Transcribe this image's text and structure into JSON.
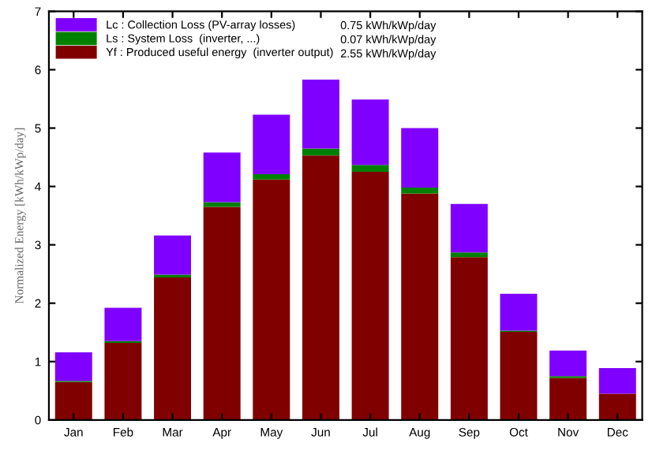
{
  "chart_data": {
    "type": "bar",
    "stacked": true,
    "ylabel": "Normalized Energy [kWh/kWp/day]",
    "categories": [
      "Jan",
      "Feb",
      "Mar",
      "Apr",
      "May",
      "Jun",
      "Jul",
      "Aug",
      "Sep",
      "Oct",
      "Nov",
      "Dec"
    ],
    "series": [
      {
        "name": "Yf : Produced useful energy  (inverter output)",
        "color": "#800000",
        "values": [
          0.65,
          1.32,
          2.44,
          3.65,
          4.12,
          4.53,
          4.25,
          3.88,
          2.79,
          1.51,
          0.72,
          0.45
        ]
      },
      {
        "name": "Ls : System Loss  (inverter, ...)",
        "color": "#008000",
        "values": [
          0.02,
          0.03,
          0.05,
          0.08,
          0.09,
          0.12,
          0.12,
          0.1,
          0.08,
          0.02,
          0.03,
          null
        ]
      },
      {
        "name": "Lc : Collection Loss (PV-array losses)",
        "color": "#8000ff",
        "values": [
          0.49,
          0.57,
          0.67,
          0.85,
          1.02,
          1.18,
          1.12,
          1.02,
          0.83,
          0.63,
          0.44,
          0.44
        ]
      }
    ],
    "annotations": [
      "2.55 kWh/kWp/day",
      "0.07 kWh/kWp/day",
      "0.75 kWh/kWp/day"
    ],
    "ylim": [
      0,
      7
    ],
    "yticks": [
      0,
      1,
      2,
      3,
      4,
      5,
      6,
      7
    ],
    "grid": false,
    "legend": "top left"
  }
}
